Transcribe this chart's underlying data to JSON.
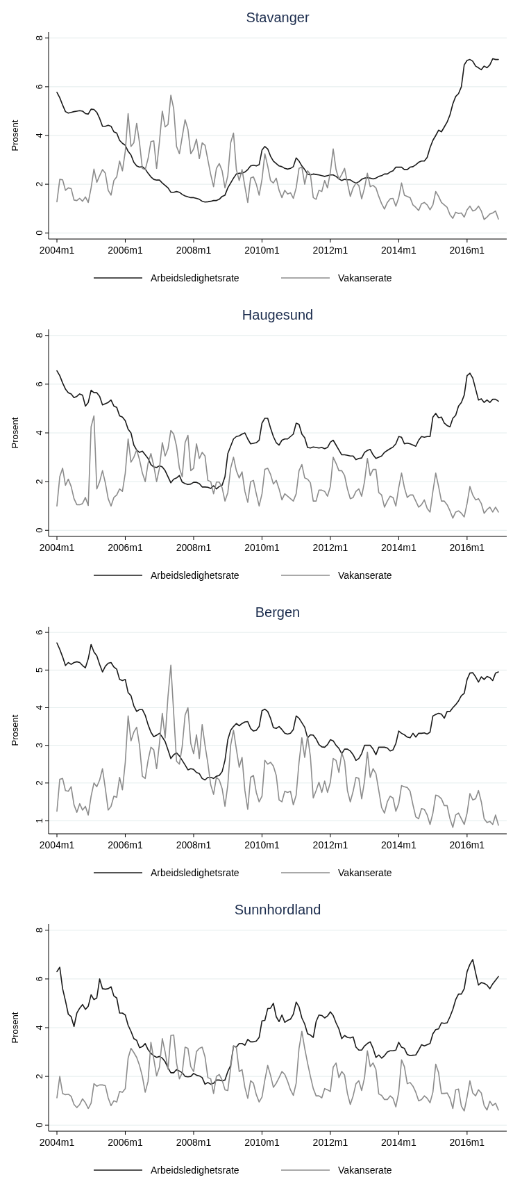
{
  "chart_data": [
    {
      "type": "line",
      "title": "Stavanger",
      "ylabel": "Prosent",
      "grid": "y",
      "legend": "bottom",
      "ylim": [
        -0.25,
        8.25
      ],
      "yticks": [
        0,
        2,
        4,
        6,
        8
      ],
      "categories": [
        "2004m1",
        null,
        null,
        null,
        null,
        null,
        null,
        null,
        null,
        null,
        null,
        null,
        null,
        null,
        null,
        null,
        null,
        null,
        null,
        null,
        null,
        null,
        null,
        null,
        "2006m1",
        null,
        null,
        null,
        null,
        null,
        null,
        null,
        null,
        null,
        null,
        null,
        null,
        null,
        null,
        null,
        null,
        null,
        null,
        null,
        null,
        null,
        null,
        null,
        "2008m1",
        null,
        null,
        null,
        null,
        null,
        null,
        null,
        null,
        null,
        null,
        null,
        null,
        null,
        null,
        null,
        null,
        null,
        null,
        null,
        null,
        null,
        null,
        null,
        "2010m1",
        null,
        null,
        null,
        null,
        null,
        null,
        null,
        null,
        null,
        null,
        null,
        null,
        null,
        null,
        null,
        null,
        null,
        null,
        null,
        null,
        null,
        null,
        null,
        "2012m1",
        null,
        null,
        null,
        null,
        null,
        null,
        null,
        null,
        null,
        null,
        null,
        null,
        null,
        null,
        null,
        null,
        null,
        null,
        null,
        null,
        null,
        null,
        null,
        "2014m1",
        null,
        null,
        null,
        null,
        null,
        null,
        null,
        null,
        null,
        null,
        null,
        null,
        null,
        null,
        null,
        null,
        null,
        null,
        null,
        null,
        null,
        null,
        null,
        "2016m1",
        null,
        null,
        null,
        null,
        null,
        null,
        null,
        null,
        null,
        null,
        null
      ],
      "series": [
        {
          "name": "Arbeidsledighetsrate",
          "color": "#1a1a1a",
          "values": [
            5.77,
            5.55,
            5.25,
            4.98,
            4.92,
            4.95,
            4.98,
            5.0,
            5.02,
            5.0,
            4.9,
            4.88,
            5.08,
            5.07,
            4.95,
            4.7,
            4.38,
            4.38,
            4.42,
            4.38,
            4.15,
            4.1,
            3.8,
            3.68,
            3.6,
            3.35,
            3.2,
            2.9,
            2.75,
            2.7,
            2.72,
            2.62,
            2.45,
            2.3,
            2.2,
            2.17,
            2.17,
            2.05,
            1.95,
            1.85,
            1.67,
            1.67,
            1.7,
            1.67,
            1.58,
            1.52,
            1.48,
            1.45,
            1.45,
            1.42,
            1.38,
            1.3,
            1.27,
            1.28,
            1.3,
            1.33,
            1.33,
            1.38,
            1.5,
            1.55,
            1.85,
            2.05,
            2.25,
            2.42,
            2.45,
            2.45,
            2.5,
            2.6,
            2.75,
            2.78,
            2.75,
            2.8,
            3.4,
            3.55,
            3.45,
            3.15,
            2.95,
            2.85,
            2.75,
            2.72,
            2.65,
            2.62,
            2.65,
            2.72,
            3.08,
            2.95,
            2.75,
            2.6,
            2.42,
            2.38,
            2.42,
            2.4,
            2.38,
            2.35,
            2.32,
            2.35,
            2.38,
            2.38,
            2.32,
            2.22,
            2.15,
            2.2,
            2.18,
            2.18,
            2.1,
            2.05,
            2.1,
            2.2,
            2.25,
            2.27,
            2.25,
            2.22,
            2.25,
            2.32,
            2.35,
            2.42,
            2.42,
            2.5,
            2.55,
            2.7,
            2.7,
            2.7,
            2.6,
            2.6,
            2.7,
            2.72,
            2.8,
            2.9,
            2.95,
            2.95,
            3.1,
            3.5,
            3.8,
            4.0,
            4.22,
            4.15,
            4.35,
            4.55,
            4.85,
            5.3,
            5.6,
            5.72,
            6.0,
            6.9,
            7.08,
            7.12,
            7.05,
            6.85,
            6.78,
            6.7,
            6.85,
            6.78,
            6.9,
            7.15,
            7.12,
            7.12
          ]
        },
        {
          "name": "Vakanserate",
          "color": "#8c8c8c",
          "values": [
            1.28,
            2.2,
            2.18,
            1.75,
            1.85,
            1.82,
            1.35,
            1.33,
            1.42,
            1.3,
            1.48,
            1.25,
            1.85,
            2.62,
            2.08,
            2.35,
            2.6,
            2.45,
            1.75,
            1.55,
            2.15,
            2.3,
            2.95,
            2.55,
            3.35,
            4.9,
            3.55,
            3.7,
            4.5,
            3.7,
            2.65,
            2.6,
            3.05,
            3.75,
            3.78,
            2.65,
            3.75,
            5.0,
            4.35,
            4.45,
            5.65,
            5.1,
            3.55,
            3.25,
            3.95,
            4.65,
            4.25,
            3.25,
            3.45,
            3.85,
            3.05,
            3.7,
            3.6,
            3.0,
            2.4,
            1.9,
            2.65,
            2.85,
            2.55,
            1.85,
            2.35,
            3.7,
            4.1,
            2.6,
            2.15,
            2.6,
            1.9,
            1.25,
            2.25,
            2.3,
            2.0,
            1.55,
            2.2,
            3.25,
            2.75,
            2.15,
            2.05,
            2.25,
            1.75,
            1.45,
            1.75,
            1.6,
            1.65,
            1.42,
            1.85,
            2.65,
            2.7,
            2.0,
            2.55,
            2.4,
            1.45,
            1.38,
            1.75,
            1.7,
            2.15,
            1.85,
            2.5,
            3.45,
            2.6,
            2.2,
            2.4,
            2.65,
            2.05,
            1.5,
            1.85,
            2.05,
            1.95,
            1.4,
            1.85,
            2.45,
            1.9,
            1.95,
            1.85,
            1.5,
            1.2,
            0.98,
            1.25,
            1.4,
            1.42,
            1.1,
            1.45,
            2.05,
            1.55,
            1.5,
            1.45,
            1.15,
            1.05,
            0.92,
            1.2,
            1.25,
            1.15,
            0.95,
            1.15,
            1.7,
            1.5,
            1.25,
            1.15,
            1.05,
            0.75,
            0.6,
            0.85,
            0.8,
            0.82,
            0.65,
            0.95,
            1.1,
            0.9,
            0.95,
            1.1,
            0.9,
            0.55,
            0.65,
            0.78,
            0.82,
            0.9,
            0.57
          ]
        }
      ]
    },
    {
      "type": "line",
      "title": "Haugesund",
      "ylabel": "Prosent",
      "grid": "y",
      "legend": "bottom",
      "ylim": [
        -0.25,
        8.25
      ],
      "yticks": [
        0,
        2,
        4,
        6,
        8
      ],
      "categories": [
        "2004m1",
        null,
        null,
        null,
        null,
        null,
        null,
        null,
        null,
        null,
        null,
        null,
        null,
        null,
        null,
        null,
        null,
        null,
        null,
        null,
        null,
        null,
        null,
        null,
        "2006m1",
        null,
        null,
        null,
        null,
        null,
        null,
        null,
        null,
        null,
        null,
        null,
        null,
        null,
        null,
        null,
        null,
        null,
        null,
        null,
        null,
        null,
        null,
        null,
        "2008m1",
        null,
        null,
        null,
        null,
        null,
        null,
        null,
        null,
        null,
        null,
        null,
        null,
        null,
        null,
        null,
        null,
        null,
        null,
        null,
        null,
        null,
        null,
        null,
        "2010m1",
        null,
        null,
        null,
        null,
        null,
        null,
        null,
        null,
        null,
        null,
        null,
        null,
        null,
        null,
        null,
        null,
        null,
        null,
        null,
        null,
        null,
        null,
        null,
        "2012m1",
        null,
        null,
        null,
        null,
        null,
        null,
        null,
        null,
        null,
        null,
        null,
        null,
        null,
        null,
        null,
        null,
        null,
        null,
        null,
        null,
        null,
        null,
        null,
        "2014m1",
        null,
        null,
        null,
        null,
        null,
        null,
        null,
        null,
        null,
        null,
        null,
        null,
        null,
        null,
        null,
        null,
        null,
        null,
        null,
        null,
        null,
        null,
        null,
        "2016m1",
        null,
        null,
        null,
        null,
        null,
        null,
        null,
        null,
        null,
        null,
        null
      ],
      "series": [
        {
          "name": "Arbeidsledighetsrate",
          "color": "#1a1a1a",
          "values": [
            6.55,
            6.35,
            6.05,
            5.8,
            5.65,
            5.6,
            5.45,
            5.5,
            5.6,
            5.55,
            5.1,
            5.25,
            5.75,
            5.65,
            5.65,
            5.5,
            5.15,
            5.2,
            5.25,
            5.35,
            5.1,
            5.05,
            4.7,
            4.65,
            4.5,
            4.15,
            4.0,
            3.5,
            3.3,
            3.2,
            3.25,
            3.1,
            2.95,
            2.7,
            2.6,
            2.58,
            2.65,
            2.6,
            2.45,
            2.2,
            1.95,
            2.1,
            2.15,
            2.25,
            1.98,
            1.92,
            1.88,
            1.9,
            1.97,
            1.97,
            1.92,
            1.78,
            1.78,
            1.77,
            1.72,
            1.83,
            1.7,
            1.8,
            1.85,
            2.2,
            3.15,
            3.45,
            3.75,
            3.85,
            3.88,
            3.95,
            4.0,
            3.75,
            3.55,
            3.57,
            3.6,
            3.7,
            4.4,
            4.6,
            4.6,
            4.2,
            3.85,
            3.6,
            3.5,
            3.7,
            3.75,
            3.75,
            3.85,
            3.95,
            4.4,
            4.35,
            3.95,
            3.8,
            3.4,
            3.38,
            3.42,
            3.4,
            3.38,
            3.4,
            3.35,
            3.4,
            3.62,
            3.7,
            3.5,
            3.3,
            3.1,
            3.1,
            3.08,
            3.05,
            3.05,
            2.9,
            2.95,
            2.97,
            3.2,
            3.28,
            3.32,
            3.1,
            2.95,
            3.0,
            3.05,
            3.2,
            3.28,
            3.35,
            3.42,
            3.55,
            3.85,
            3.82,
            3.55,
            3.58,
            3.55,
            3.5,
            3.45,
            3.7,
            3.85,
            3.82,
            3.85,
            3.85,
            4.65,
            4.8,
            4.62,
            4.65,
            4.4,
            4.3,
            4.25,
            4.6,
            4.72,
            5.1,
            5.25,
            5.55,
            6.35,
            6.45,
            6.25,
            5.8,
            5.35,
            5.4,
            5.25,
            5.35,
            5.25,
            5.38,
            5.38,
            5.3
          ]
        },
        {
          "name": "Vakanserate",
          "color": "#8c8c8c",
          "values": [
            1.0,
            2.2,
            2.55,
            1.85,
            2.1,
            1.8,
            1.3,
            1.05,
            1.05,
            1.1,
            1.35,
            1.02,
            4.25,
            4.7,
            1.7,
            2.0,
            2.45,
            1.95,
            1.3,
            1.0,
            1.35,
            1.45,
            1.7,
            1.6,
            2.35,
            3.75,
            2.8,
            3.0,
            3.3,
            2.9,
            2.35,
            2.0,
            2.75,
            3.15,
            2.65,
            2.0,
            2.55,
            3.6,
            3.05,
            3.35,
            4.1,
            3.95,
            3.45,
            2.55,
            2.2,
            3.6,
            3.9,
            2.45,
            2.55,
            3.55,
            2.95,
            3.2,
            3.05,
            2.05,
            2.0,
            1.5,
            1.98,
            1.98,
            1.75,
            1.2,
            1.55,
            2.55,
            3.0,
            2.45,
            2.15,
            2.4,
            1.6,
            1.15,
            2.0,
            2.05,
            1.5,
            1.0,
            1.5,
            2.5,
            2.55,
            2.3,
            1.9,
            2.05,
            1.7,
            1.25,
            1.5,
            1.4,
            1.3,
            1.2,
            1.5,
            2.45,
            2.7,
            2.15,
            2.1,
            1.95,
            1.2,
            1.2,
            1.65,
            1.65,
            1.6,
            1.4,
            1.8,
            3.0,
            2.75,
            2.45,
            2.45,
            2.25,
            1.7,
            1.3,
            1.35,
            1.6,
            1.7,
            1.4,
            2.0,
            2.95,
            2.25,
            2.5,
            2.5,
            1.55,
            1.45,
            0.95,
            1.2,
            1.4,
            1.35,
            1.0,
            1.75,
            2.35,
            1.75,
            1.35,
            1.45,
            1.45,
            1.2,
            0.95,
            1.05,
            1.25,
            0.9,
            0.75,
            1.6,
            2.35,
            1.8,
            1.2,
            1.2,
            1.05,
            0.8,
            0.5,
            0.75,
            0.8,
            0.7,
            0.55,
            1.1,
            1.8,
            1.45,
            1.25,
            1.3,
            1.1,
            0.7,
            0.85,
            0.95,
            0.75,
            0.95,
            0.75
          ]
        }
      ]
    },
    {
      "type": "line",
      "title": "Bergen",
      "ylabel": "Prosent",
      "grid": "y",
      "legend": "bottom",
      "ylim": [
        0.65,
        6.15
      ],
      "yticks": [
        1,
        2,
        3,
        4,
        5,
        6
      ],
      "categories": [
        "2004m1",
        null,
        null,
        null,
        null,
        null,
        null,
        null,
        null,
        null,
        null,
        null,
        null,
        null,
        null,
        null,
        null,
        null,
        null,
        null,
        null,
        null,
        null,
        null,
        "2006m1",
        null,
        null,
        null,
        null,
        null,
        null,
        null,
        null,
        null,
        null,
        null,
        null,
        null,
        null,
        null,
        null,
        null,
        null,
        null,
        null,
        null,
        null,
        null,
        "2008m1",
        null,
        null,
        null,
        null,
        null,
        null,
        null,
        null,
        null,
        null,
        null,
        null,
        null,
        null,
        null,
        null,
        null,
        null,
        null,
        null,
        null,
        null,
        null,
        "2010m1",
        null,
        null,
        null,
        null,
        null,
        null,
        null,
        null,
        null,
        null,
        null,
        null,
        null,
        null,
        null,
        null,
        null,
        null,
        null,
        null,
        null,
        null,
        null,
        "2012m1",
        null,
        null,
        null,
        null,
        null,
        null,
        null,
        null,
        null,
        null,
        null,
        null,
        null,
        null,
        null,
        null,
        null,
        null,
        null,
        null,
        null,
        null,
        null,
        "2014m1",
        null,
        null,
        null,
        null,
        null,
        null,
        null,
        null,
        null,
        null,
        null,
        null,
        null,
        null,
        null,
        null,
        null,
        null,
        null,
        null,
        null,
        null,
        null,
        "2016m1",
        null,
        null,
        null,
        null,
        null,
        null,
        null,
        null,
        null,
        null,
        null
      ],
      "series": [
        {
          "name": "Arbeidsledighetsrate",
          "color": "#1a1a1a",
          "values": [
            5.72,
            5.55,
            5.35,
            5.12,
            5.2,
            5.15,
            5.2,
            5.22,
            5.2,
            5.12,
            5.06,
            5.3,
            5.68,
            5.48,
            5.38,
            5.15,
            4.95,
            5.1,
            5.18,
            5.2,
            5.08,
            5.02,
            4.75,
            4.72,
            4.75,
            4.4,
            4.32,
            4.05,
            3.9,
            3.95,
            3.95,
            3.8,
            3.55,
            3.35,
            3.23,
            3.27,
            3.32,
            3.22,
            3.1,
            2.88,
            2.65,
            2.75,
            2.8,
            2.72,
            2.6,
            2.48,
            2.35,
            2.38,
            2.36,
            2.28,
            2.25,
            2.12,
            2.08,
            2.15,
            2.15,
            2.12,
            2.18,
            2.2,
            2.3,
            2.6,
            3.15,
            3.4,
            3.5,
            3.58,
            3.52,
            3.58,
            3.62,
            3.63,
            3.45,
            3.38,
            3.4,
            3.5,
            3.92,
            3.96,
            3.9,
            3.72,
            3.47,
            3.45,
            3.5,
            3.42,
            3.32,
            3.3,
            3.32,
            3.42,
            3.78,
            3.72,
            3.6,
            3.48,
            3.2,
            3.28,
            3.27,
            3.17,
            3.02,
            2.96,
            2.95,
            3.02,
            3.15,
            3.12,
            3.0,
            2.92,
            2.78,
            2.9,
            2.9,
            2.85,
            2.75,
            2.6,
            2.65,
            2.78,
            3.0,
            3.0,
            3.0,
            2.9,
            2.75,
            2.95,
            2.95,
            2.95,
            2.93,
            2.85,
            2.88,
            3.05,
            3.38,
            3.32,
            3.28,
            3.22,
            3.2,
            3.32,
            3.22,
            3.32,
            3.32,
            3.33,
            3.3,
            3.35,
            3.78,
            3.82,
            3.85,
            3.83,
            3.72,
            3.9,
            3.9,
            4.0,
            4.08,
            4.18,
            4.32,
            4.38,
            4.75,
            4.92,
            4.93,
            4.82,
            4.68,
            4.82,
            4.75,
            4.83,
            4.8,
            4.72,
            4.92,
            4.95
          ]
        },
        {
          "name": "Vakanserate",
          "color": "#8c8c8c",
          "values": [
            1.25,
            2.1,
            2.12,
            1.8,
            1.78,
            1.9,
            1.42,
            1.22,
            1.45,
            1.28,
            1.38,
            1.15,
            1.65,
            2.0,
            1.9,
            2.08,
            2.38,
            1.85,
            1.28,
            1.38,
            1.65,
            1.62,
            2.15,
            1.82,
            2.55,
            3.78,
            3.12,
            3.35,
            3.48,
            3.0,
            2.18,
            2.12,
            2.6,
            2.95,
            2.88,
            2.38,
            3.05,
            3.85,
            3.2,
            4.3,
            5.13,
            3.85,
            2.58,
            2.5,
            2.98,
            3.8,
            4.0,
            3.05,
            2.78,
            3.28,
            2.65,
            3.55,
            3.0,
            2.52,
            1.95,
            1.7,
            2.15,
            2.08,
            1.85,
            1.38,
            1.95,
            3.0,
            3.4,
            2.9,
            2.42,
            2.68,
            1.8,
            1.3,
            2.15,
            2.2,
            1.75,
            1.5,
            1.65,
            2.6,
            2.5,
            2.55,
            2.45,
            2.2,
            1.55,
            1.5,
            1.78,
            1.75,
            1.78,
            1.42,
            1.68,
            2.55,
            3.2,
            2.68,
            3.25,
            2.7,
            1.6,
            1.8,
            2.02,
            1.75,
            2.05,
            1.75,
            2.02,
            2.65,
            2.6,
            2.28,
            2.8,
            2.58,
            1.8,
            1.5,
            1.78,
            2.15,
            2.12,
            1.58,
            2.05,
            2.82,
            2.15,
            2.38,
            2.25,
            1.8,
            1.35,
            1.2,
            1.5,
            1.65,
            1.6,
            1.25,
            1.45,
            1.93,
            1.9,
            1.88,
            1.78,
            1.42,
            1.1,
            1.05,
            1.32,
            1.3,
            1.15,
            0.9,
            1.2,
            1.68,
            1.65,
            1.58,
            1.4,
            1.4,
            1.05,
            0.82,
            1.15,
            1.2,
            1.05,
            0.9,
            1.2,
            1.72,
            1.55,
            1.58,
            1.8,
            1.5,
            1.05,
            0.95,
            0.98,
            0.9,
            1.15,
            0.88
          ]
        }
      ]
    },
    {
      "type": "line",
      "title": "Sunnhordland",
      "ylabel": "Prosent",
      "grid": "y",
      "legend": "bottom",
      "ylim": [
        -0.25,
        8.25
      ],
      "yticks": [
        0,
        2,
        4,
        6,
        8
      ],
      "categories": [
        "2004m1",
        null,
        null,
        null,
        null,
        null,
        null,
        null,
        null,
        null,
        null,
        null,
        null,
        null,
        null,
        null,
        null,
        null,
        null,
        null,
        null,
        null,
        null,
        null,
        "2006m1",
        null,
        null,
        null,
        null,
        null,
        null,
        null,
        null,
        null,
        null,
        null,
        null,
        null,
        null,
        null,
        null,
        null,
        null,
        null,
        null,
        null,
        null,
        null,
        "2008m1",
        null,
        null,
        null,
        null,
        null,
        null,
        null,
        null,
        null,
        null,
        null,
        null,
        null,
        null,
        null,
        null,
        null,
        null,
        null,
        null,
        null,
        null,
        null,
        "2010m1",
        null,
        null,
        null,
        null,
        null,
        null,
        null,
        null,
        null,
        null,
        null,
        null,
        null,
        null,
        null,
        null,
        null,
        null,
        null,
        null,
        null,
        null,
        null,
        "2012m1",
        null,
        null,
        null,
        null,
        null,
        null,
        null,
        null,
        null,
        null,
        null,
        null,
        null,
        null,
        null,
        null,
        null,
        null,
        null,
        null,
        null,
        null,
        null,
        "2014m1",
        null,
        null,
        null,
        null,
        null,
        null,
        null,
        null,
        null,
        null,
        null,
        null,
        null,
        null,
        null,
        null,
        null,
        null,
        null,
        null,
        null,
        null,
        null,
        "2016m1",
        null,
        null,
        null,
        null,
        null,
        null,
        null,
        null,
        null,
        null,
        null
      ],
      "series": [
        {
          "name": "Arbeidsledighetsrate",
          "color": "#1a1a1a",
          "values": [
            6.3,
            6.48,
            5.6,
            5.1,
            4.55,
            4.45,
            4.05,
            4.6,
            4.8,
            4.95,
            4.75,
            4.88,
            5.35,
            5.15,
            5.22,
            6.0,
            5.6,
            5.58,
            5.6,
            5.68,
            5.3,
            5.22,
            4.6,
            4.6,
            4.52,
            4.1,
            3.85,
            3.55,
            3.48,
            3.18,
            3.22,
            3.35,
            3.1,
            2.95,
            2.85,
            2.78,
            2.82,
            2.75,
            2.6,
            2.35,
            2.15,
            2.15,
            2.28,
            2.22,
            2.15,
            2.0,
            1.98,
            2.0,
            2.12,
            2.05,
            2.02,
            1.95,
            1.68,
            1.75,
            1.68,
            1.72,
            1.85,
            1.85,
            1.82,
            1.85,
            2.2,
            2.45,
            3.25,
            3.2,
            3.35,
            3.35,
            3.28,
            3.52,
            3.42,
            3.42,
            3.45,
            3.6,
            4.28,
            4.3,
            4.78,
            4.8,
            5.0,
            4.45,
            4.25,
            4.52,
            4.22,
            4.3,
            4.35,
            4.55,
            5.05,
            4.85,
            4.4,
            4.15,
            3.75,
            3.7,
            3.6,
            4.25,
            4.52,
            4.5,
            4.4,
            4.48,
            4.65,
            4.5,
            4.2,
            3.95,
            3.55,
            3.68,
            3.6,
            3.58,
            3.62,
            3.2,
            3.08,
            3.08,
            3.25,
            3.35,
            3.42,
            3.15,
            2.78,
            2.88,
            2.75,
            2.85,
            3.0,
            3.05,
            3.05,
            3.08,
            3.4,
            3.2,
            3.15,
            2.9,
            2.85,
            2.87,
            2.88,
            3.08,
            3.3,
            3.25,
            3.3,
            3.35,
            3.75,
            3.92,
            3.95,
            4.2,
            4.18,
            4.2,
            4.45,
            4.75,
            5.15,
            5.38,
            5.38,
            5.6,
            6.3,
            6.6,
            6.8,
            6.25,
            5.75,
            5.85,
            5.82,
            5.75,
            5.6,
            5.8,
            5.95,
            6.1
          ]
        },
        {
          "name": "Vakanserate",
          "color": "#8c8c8c",
          "values": [
            1.12,
            2.0,
            1.3,
            1.25,
            1.27,
            1.18,
            0.85,
            0.72,
            0.85,
            1.08,
            0.92,
            0.68,
            0.9,
            1.7,
            1.6,
            1.65,
            1.65,
            1.62,
            1.12,
            0.8,
            1.0,
            0.95,
            1.38,
            1.35,
            1.5,
            2.75,
            3.15,
            2.98,
            2.78,
            2.45,
            2.0,
            1.35,
            1.8,
            3.4,
            2.72,
            2.02,
            2.38,
            3.55,
            3.0,
            2.3,
            3.68,
            3.7,
            2.55,
            1.9,
            2.15,
            3.2,
            3.15,
            2.4,
            2.2,
            3.02,
            3.15,
            3.2,
            2.8,
            1.95,
            1.9,
            1.3,
            2.0,
            2.08,
            1.85,
            1.45,
            1.42,
            2.35,
            3.25,
            3.18,
            2.2,
            2.28,
            1.55,
            1.1,
            1.82,
            1.72,
            1.25,
            0.95,
            1.15,
            1.85,
            2.45,
            2.05,
            1.55,
            1.72,
            1.95,
            2.2,
            2.08,
            1.8,
            1.45,
            1.22,
            1.72,
            3.15,
            3.85,
            3.15,
            2.55,
            2.0,
            1.5,
            1.2,
            1.2,
            1.12,
            1.5,
            1.45,
            1.38,
            2.38,
            2.55,
            1.95,
            2.2,
            2.05,
            1.3,
            0.85,
            1.2,
            1.7,
            1.82,
            1.42,
            1.95,
            3.05,
            2.4,
            2.55,
            2.28,
            1.28,
            1.22,
            1.05,
            1.05,
            1.2,
            1.1,
            0.75,
            1.35,
            2.68,
            2.4,
            1.7,
            1.75,
            1.6,
            1.35,
            1.0,
            1.05,
            1.2,
            1.1,
            0.92,
            1.35,
            2.5,
            2.15,
            1.3,
            1.3,
            1.32,
            1.1,
            0.68,
            1.45,
            1.48,
            0.78,
            0.58,
            1.15,
            1.82,
            1.32,
            1.2,
            1.45,
            1.32,
            0.8,
            0.62,
            0.98,
            0.8,
            0.9,
            0.62
          ]
        }
      ]
    }
  ]
}
